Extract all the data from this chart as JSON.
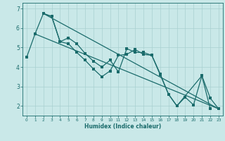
{
  "xlabel": "Humidex (Indice chaleur)",
  "background_color": "#c9e8e8",
  "grid_color": "#a8d0d0",
  "line_color": "#1a6b6b",
  "xlim": [
    -0.5,
    23.5
  ],
  "ylim": [
    1.5,
    7.3
  ],
  "yticks": [
    2,
    3,
    4,
    5,
    6,
    7
  ],
  "xticks": [
    0,
    1,
    2,
    3,
    4,
    5,
    6,
    7,
    8,
    9,
    10,
    11,
    12,
    13,
    14,
    15,
    16,
    17,
    18,
    19,
    20,
    21,
    22,
    23
  ],
  "line1_x": [
    0,
    1,
    2,
    3,
    4,
    5,
    6,
    7,
    8,
    9,
    10,
    11,
    12,
    13,
    14,
    15,
    16,
    17,
    18,
    21,
    22
  ],
  "line1_y": [
    4.5,
    5.7,
    6.75,
    6.6,
    5.3,
    5.2,
    4.75,
    4.35,
    3.9,
    3.5,
    3.8,
    4.6,
    4.65,
    4.9,
    4.65,
    4.6,
    3.6,
    2.6,
    2.0,
    3.55,
    1.85
  ],
  "line2_x": [
    2,
    3,
    4,
    5,
    6,
    7,
    8,
    9,
    10,
    11,
    12,
    13,
    14,
    15,
    16,
    17,
    18,
    19,
    20,
    21,
    22,
    23
  ],
  "line2_y": [
    6.75,
    6.6,
    5.3,
    5.5,
    5.2,
    4.7,
    4.3,
    4.0,
    4.35,
    3.75,
    4.95,
    4.75,
    4.75,
    4.6,
    3.65,
    2.6,
    2.0,
    2.45,
    2.05,
    3.55,
    2.4,
    1.85
  ],
  "line3_x": [
    2,
    23
  ],
  "line3_y": [
    6.75,
    1.85
  ],
  "line4_x": [
    1,
    23
  ],
  "line4_y": [
    5.7,
    1.85
  ]
}
